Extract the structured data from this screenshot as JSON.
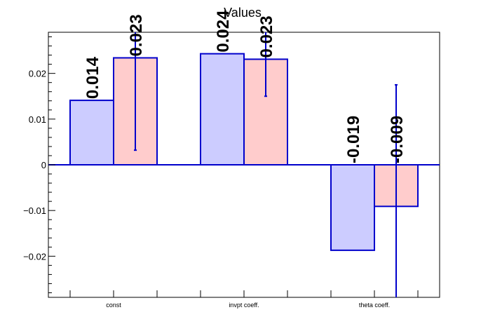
{
  "chart_data": {
    "type": "bar",
    "title": "Values",
    "xlabel": "",
    "ylabel": "",
    "categories": [
      "const",
      "invpt coeff.",
      "theta coeff."
    ],
    "ylim": [
      -0.029,
      0.029
    ],
    "yticks": [
      -0.02,
      -0.01,
      0,
      0.01,
      0.02
    ],
    "ytick_labels": [
      "−0.02",
      "−0.01",
      "0",
      "0.01",
      "0.02"
    ],
    "grid": false,
    "series": [
      {
        "values": [
          0.0141,
          0.0243,
          -0.0187
        ],
        "data_labels": [
          "0.014",
          "0.024",
          "-0.019"
        ],
        "color": "#ccccff",
        "edge_color": "#0000cc"
      },
      {
        "values": [
          0.0234,
          0.0231,
          -0.0091
        ],
        "errors": [
          0.0202,
          0.0081,
          0.0266
        ],
        "data_labels": [
          "0.023",
          "0.023",
          "-0.009"
        ],
        "color": "#ffcccc",
        "edge_color": "#0000cc"
      }
    ]
  }
}
